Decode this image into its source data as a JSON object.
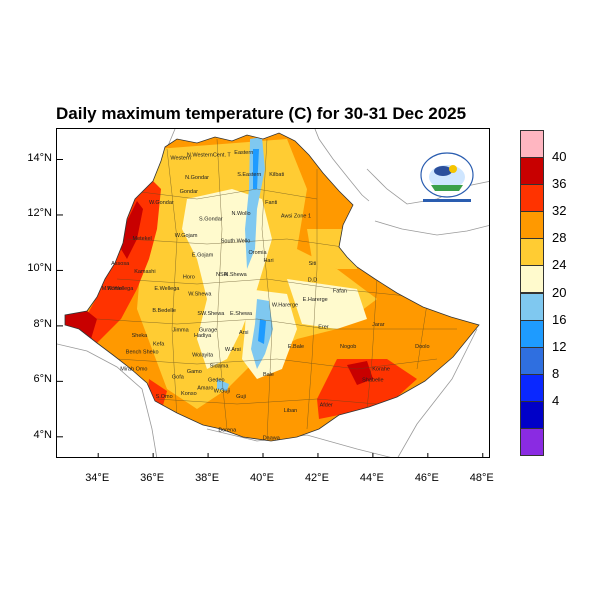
{
  "title": "Daily maximum temperature (C) for 30-31 Dec 2025",
  "y_ticks": [
    "14°N",
    "12°N",
    "10°N",
    "8°N",
    "6°N",
    "4°N"
  ],
  "x_ticks": [
    "34°E",
    "36°E",
    "38°E",
    "40°E",
    "42°E",
    "44°E",
    "46°E",
    "48°E"
  ],
  "colorbar_labels": [
    "40",
    "36",
    "32",
    "28",
    "24",
    "20",
    "16",
    "12",
    "8",
    "4"
  ],
  "colorbar_colors": [
    "#ffb6c1",
    "#c80000",
    "#ff3300",
    "#ff9900",
    "#ffcc33",
    "#fffacd",
    "#7fc8f0",
    "#1e9bff",
    "#2f6fe0",
    "#0a28ff",
    "#0000c8",
    "#8a2be2"
  ],
  "chart_data": {
    "type": "heatmap",
    "title": "Daily maximum temperature (C) for 30-31 Dec 2025",
    "xlim": [
      32.5,
      48.3
    ],
    "ylim": [
      3.2,
      15.1
    ],
    "x_ticks": [
      34,
      36,
      38,
      40,
      42,
      44,
      46,
      48
    ],
    "y_ticks": [
      14,
      12,
      10,
      8,
      6,
      4
    ],
    "colorbar_levels": [
      4,
      8,
      12,
      16,
      20,
      24,
      28,
      32,
      36,
      40
    ],
    "regions": [
      {
        "label": "Western",
        "lon": 37.0,
        "lat": 14.0,
        "temp": 30
      },
      {
        "label": "N.Western",
        "lon": 37.7,
        "lat": 14.1,
        "temp": 28
      },
      {
        "label": "Cent. T",
        "lon": 38.5,
        "lat": 14.1,
        "temp": 26
      },
      {
        "label": "Eastern",
        "lon": 39.3,
        "lat": 14.2,
        "temp": 24
      },
      {
        "label": "S.Eastern",
        "lon": 39.5,
        "lat": 13.4,
        "temp": 24
      },
      {
        "label": "Kilbati",
        "lon": 40.5,
        "lat": 13.4,
        "temp": 30
      },
      {
        "label": "N.Gondar",
        "lon": 37.6,
        "lat": 13.3,
        "temp": 28
      },
      {
        "label": "Gondar",
        "lon": 37.3,
        "lat": 12.8,
        "temp": 27
      },
      {
        "label": "W.Gondar",
        "lon": 36.3,
        "lat": 12.4,
        "temp": 34
      },
      {
        "label": "S.Gondar",
        "lon": 38.1,
        "lat": 11.8,
        "temp": 24
      },
      {
        "label": "N.Wollo",
        "lon": 39.2,
        "lat": 12.0,
        "temp": 22
      },
      {
        "label": "Fanti",
        "lon": 40.3,
        "lat": 12.4,
        "temp": 30
      },
      {
        "label": "Awsi Zone 1",
        "lon": 41.2,
        "lat": 11.9,
        "temp": 31
      },
      {
        "label": "W.Gojam",
        "lon": 37.2,
        "lat": 11.2,
        "temp": 25
      },
      {
        "label": "South Wello",
        "lon": 39.0,
        "lat": 11.0,
        "temp": 22
      },
      {
        "label": "E.Gojam",
        "lon": 37.8,
        "lat": 10.5,
        "temp": 23
      },
      {
        "label": "Metekel",
        "lon": 35.6,
        "lat": 11.1,
        "temp": 33
      },
      {
        "label": "Oromia",
        "lon": 39.8,
        "lat": 10.6,
        "temp": 26
      },
      {
        "label": "Hari",
        "lon": 40.2,
        "lat": 10.3,
        "temp": 27
      },
      {
        "label": "Siti",
        "lon": 41.8,
        "lat": 10.2,
        "temp": 30
      },
      {
        "label": "Assosa",
        "lon": 34.8,
        "lat": 10.2,
        "temp": 32
      },
      {
        "label": "Kamashi",
        "lon": 35.7,
        "lat": 9.9,
        "temp": 31
      },
      {
        "label": "Horo",
        "lon": 37.3,
        "lat": 9.7,
        "temp": 26
      },
      {
        "label": "N.Shewa",
        "lon": 39.0,
        "lat": 9.8,
        "temp": 22
      },
      {
        "label": "NSH",
        "lon": 38.5,
        "lat": 9.8,
        "temp": 24
      },
      {
        "label": "D.D",
        "lon": 41.8,
        "lat": 9.6,
        "temp": 30
      },
      {
        "label": "Fafan",
        "lon": 42.8,
        "lat": 9.2,
        "temp": 28
      },
      {
        "label": "M.Komo",
        "lon": 34.5,
        "lat": 9.3,
        "temp": 32
      },
      {
        "label": "W.Wellega",
        "lon": 34.8,
        "lat": 9.3,
        "temp": 31
      },
      {
        "label": "E.Wellega",
        "lon": 36.5,
        "lat": 9.3,
        "temp": 28
      },
      {
        "label": "W.Shewa",
        "lon": 37.7,
        "lat": 9.1,
        "temp": 25
      },
      {
        "label": "W.Harerge",
        "lon": 40.8,
        "lat": 8.7,
        "temp": 26
      },
      {
        "label": "E.Harerge",
        "lon": 41.9,
        "lat": 8.9,
        "temp": 27
      },
      {
        "label": "Jarar",
        "lon": 44.2,
        "lat": 8.0,
        "temp": 30
      },
      {
        "label": "Erer",
        "lon": 42.2,
        "lat": 7.9,
        "temp": 29
      },
      {
        "label": "B.Bedelle",
        "lon": 36.4,
        "lat": 8.5,
        "temp": 26
      },
      {
        "label": "SW.Shewa",
        "lon": 38.1,
        "lat": 8.4,
        "temp": 23
      },
      {
        "label": "E.Shewa",
        "lon": 39.2,
        "lat": 8.4,
        "temp": 21
      },
      {
        "label": "Jimma",
        "lon": 37.0,
        "lat": 7.8,
        "temp": 26
      },
      {
        "label": "Gurage",
        "lon": 38.0,
        "lat": 7.8,
        "temp": 23
      },
      {
        "label": "Sheka",
        "lon": 35.5,
        "lat": 7.6,
        "temp": 32
      },
      {
        "label": "Bench Sheko",
        "lon": 35.6,
        "lat": 7.0,
        "temp": 30
      },
      {
        "label": "Kefa",
        "lon": 36.2,
        "lat": 7.3,
        "temp": 26
      },
      {
        "label": "Hadiya",
        "lon": 37.8,
        "lat": 7.6,
        "temp": 24
      },
      {
        "label": "Wolayita",
        "lon": 37.8,
        "lat": 6.9,
        "temp": 25
      },
      {
        "label": "Arsi",
        "lon": 39.3,
        "lat": 7.7,
        "temp": 20
      },
      {
        "label": "W.Arsi",
        "lon": 38.9,
        "lat": 7.1,
        "temp": 20
      },
      {
        "label": "E.Bale",
        "lon": 41.2,
        "lat": 7.2,
        "temp": 28
      },
      {
        "label": "Nogob",
        "lon": 43.1,
        "lat": 7.2,
        "temp": 30
      },
      {
        "label": "Doolo",
        "lon": 45.8,
        "lat": 7.2,
        "temp": 31
      },
      {
        "label": "Korahe",
        "lon": 44.3,
        "lat": 6.4,
        "temp": 32
      },
      {
        "label": "Mirab Omo",
        "lon": 35.3,
        "lat": 6.4,
        "temp": 31
      },
      {
        "label": "Sidama",
        "lon": 38.4,
        "lat": 6.5,
        "temp": 22
      },
      {
        "label": "Gedeo",
        "lon": 38.3,
        "lat": 6.0,
        "temp": 22
      },
      {
        "label": "Gofa",
        "lon": 36.9,
        "lat": 6.1,
        "temp": 27
      },
      {
        "label": "Gamo",
        "lon": 37.5,
        "lat": 6.3,
        "temp": 27
      },
      {
        "label": "Bale",
        "lon": 40.2,
        "lat": 6.2,
        "temp": 24
      },
      {
        "label": "Shabelle",
        "lon": 44.0,
        "lat": 6.0,
        "temp": 34
      },
      {
        "label": "S.Omo",
        "lon": 36.4,
        "lat": 5.4,
        "temp": 33
      },
      {
        "label": "Amaro",
        "lon": 37.9,
        "lat": 5.7,
        "temp": 26
      },
      {
        "label": "W.Guji",
        "lon": 38.5,
        "lat": 5.6,
        "temp": 24
      },
      {
        "label": "Konso",
        "lon": 37.3,
        "lat": 5.5,
        "temp": 28
      },
      {
        "label": "Guji",
        "lon": 39.2,
        "lat": 5.4,
        "temp": 25
      },
      {
        "label": "Liban",
        "lon": 41.0,
        "lat": 4.9,
        "temp": 30
      },
      {
        "label": "Afder",
        "lon": 42.3,
        "lat": 5.1,
        "temp": 32
      },
      {
        "label": "Borena",
        "lon": 38.7,
        "lat": 4.2,
        "temp": 28
      },
      {
        "label": "Daawa",
        "lon": 40.3,
        "lat": 3.9,
        "temp": 29
      }
    ]
  }
}
